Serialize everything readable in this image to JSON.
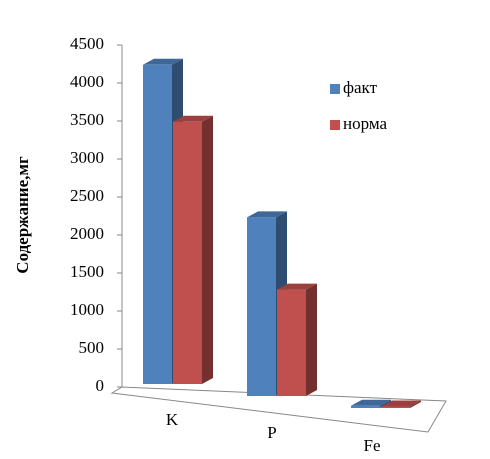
{
  "chart_data": {
    "type": "bar3d",
    "y_label": "Содержание,мг",
    "categories": [
      "K",
      "P",
      "Fe"
    ],
    "series": [
      {
        "name": "факт",
        "color": "#4f81bd",
        "values": [
          4200,
          2350,
          30
        ]
      },
      {
        "name": "норма",
        "color": "#c0504d",
        "values": [
          3450,
          1400,
          20
        ]
      }
    ],
    "ylim": [
      0,
      4500
    ],
    "yticks": [
      0,
      500,
      1000,
      1500,
      2000,
      2500,
      3000,
      3500,
      4000,
      4500
    ]
  }
}
